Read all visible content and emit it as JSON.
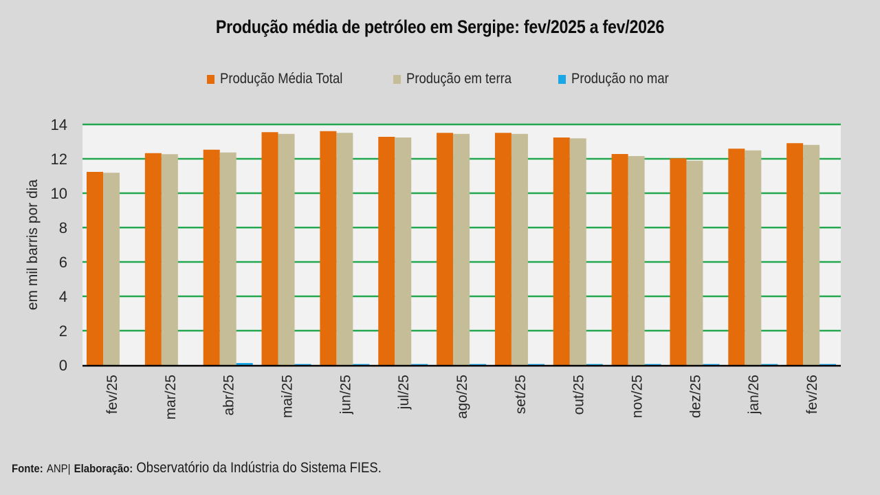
{
  "chart_data": {
    "type": "bar",
    "title": "Produção média de petróleo em Sergipe: fev/2025 a fev/2026",
    "xlabel": "",
    "ylabel": "em mil barris por dia",
    "ylim": [
      0,
      14
    ],
    "yticks": [
      0,
      2,
      4,
      6,
      8,
      10,
      12,
      14
    ],
    "grid": true,
    "legend_position": "top",
    "categories": [
      "fev/25",
      "mar/25",
      "abr/25",
      "mai/25",
      "jun/25",
      "jul/25",
      "ago/25",
      "set/25",
      "out/25",
      "nov/25",
      "dez/25",
      "jan/26",
      "fev/26"
    ],
    "series": [
      {
        "name": "Produção Média Total",
        "color": "#e46c0a",
        "values": [
          11.24,
          12.33,
          12.53,
          13.55,
          13.61,
          13.28,
          13.51,
          13.51,
          13.24,
          12.28,
          12.03,
          12.59,
          12.91
        ]
      },
      {
        "name": "Produção em terra",
        "color": "#c4bd97",
        "values": [
          11.19,
          12.27,
          12.37,
          13.45,
          13.51,
          13.24,
          13.45,
          13.45,
          13.19,
          12.16,
          11.89,
          12.49,
          12.81
        ]
      },
      {
        "name": "Produção no mar",
        "color": "#1aa7e6",
        "values": [
          0.0,
          0.0,
          0.12,
          0.06,
          0.06,
          0.06,
          0.06,
          0.06,
          0.06,
          0.06,
          0.06,
          0.06,
          0.06
        ]
      }
    ]
  },
  "colors": {
    "background": "#d9d9d9",
    "plot_background": "#f2f2f2",
    "gridline": "#22a64e",
    "axis": "#000000"
  },
  "footer": {
    "source_label": "Fonte:",
    "source_value": "ANP|",
    "elaboration_label": "Elaboração:",
    "elaboration_value": "Observatório da Indústria do Sistema FIES."
  }
}
